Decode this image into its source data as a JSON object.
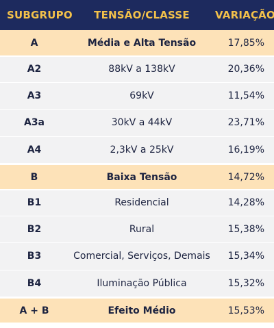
{
  "header": {
    "col1": "SUBGRUPO",
    "col2": "TENSÃO/CLASSE",
    "col3": "VARIAÇÃO"
  },
  "rows": [
    {
      "type": "group",
      "subgrupo": "A",
      "classe": "Média e Alta Tensão",
      "variacao": "17,85%"
    },
    {
      "type": "item",
      "subgrupo": "A2",
      "classe": "88kV a 138kV",
      "variacao": "20,36%"
    },
    {
      "type": "item",
      "subgrupo": "A3",
      "classe": "69kV",
      "variacao": "11,54%"
    },
    {
      "type": "item",
      "subgrupo": "A3a",
      "classe": "30kV a 44kV",
      "variacao": "23,71%"
    },
    {
      "type": "item",
      "subgrupo": "A4",
      "classe": "2,3kV a 25kV",
      "variacao": "16,19%"
    },
    {
      "type": "group",
      "subgrupo": "B",
      "classe": "Baixa Tensão",
      "variacao": "14,72%"
    },
    {
      "type": "item",
      "subgrupo": "B1",
      "classe": "Residencial",
      "variacao": "14,28%"
    },
    {
      "type": "item",
      "subgrupo": "B2",
      "classe": "Rural",
      "variacao": "15,38%"
    },
    {
      "type": "item",
      "subgrupo": "B3",
      "classe": "Comercial, Serviços, Demais",
      "variacao": "15,34%"
    },
    {
      "type": "item",
      "subgrupo": "B4",
      "classe": "Iluminação Pública",
      "variacao": "15,32%"
    },
    {
      "type": "group",
      "subgrupo": "A + B",
      "classe": "Efeito Médio",
      "variacao": "15,53%"
    }
  ]
}
